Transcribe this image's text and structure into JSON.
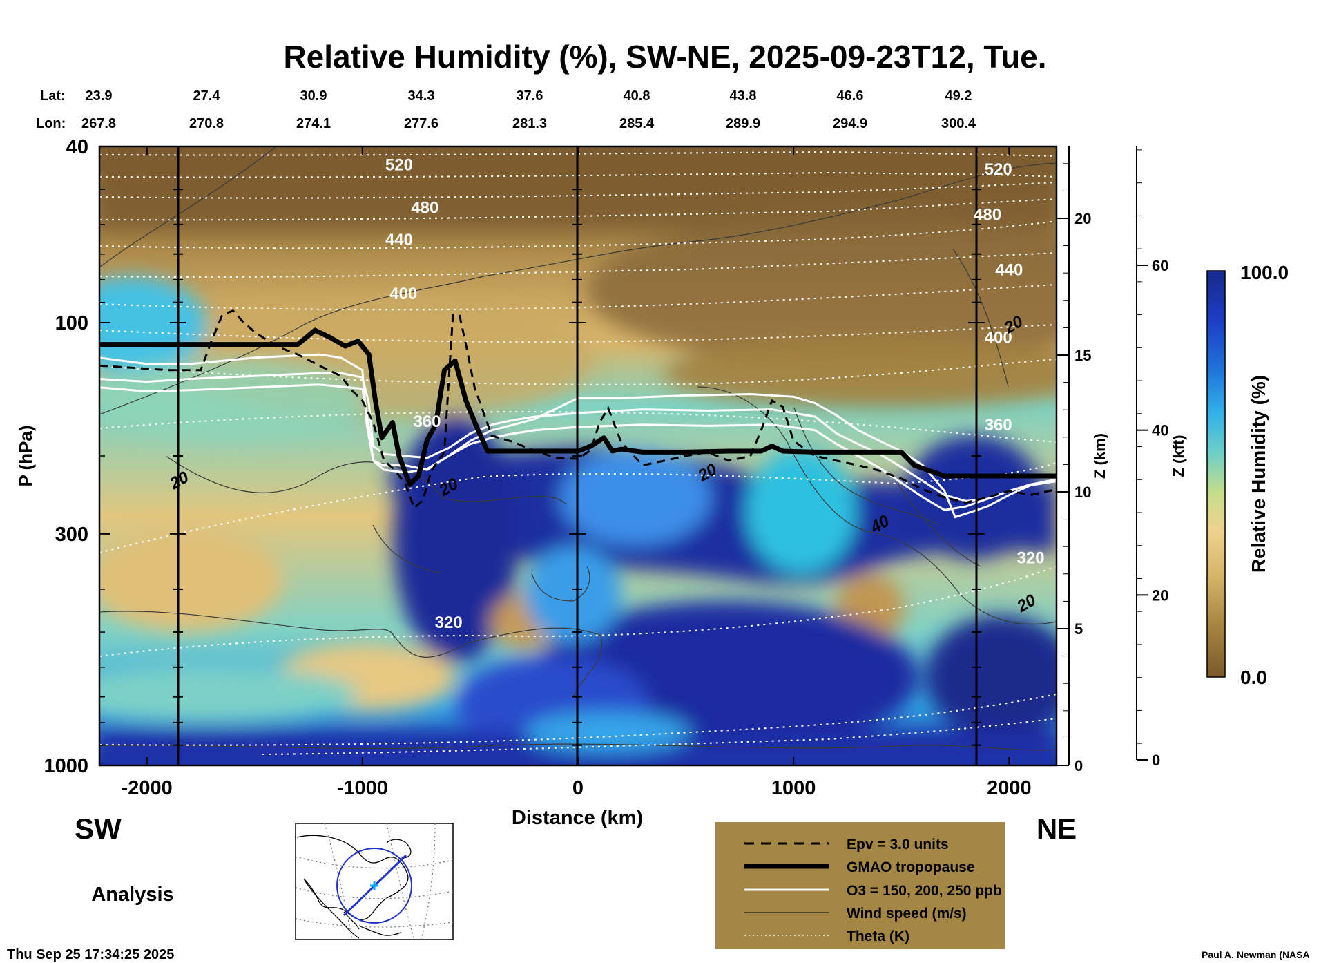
{
  "chart_data": {
    "type": "heatmap",
    "title": "Relative Humidity (%), SW-NE, 2025-09-23T12, Tue.",
    "xlabel": "Distance (km)",
    "ylabel": "P (hPa)",
    "y2label": "Z (km)",
    "y3label": "Z (kft)",
    "colorbar_label": "Relative Humidity (%)",
    "colorbar_max": "100.0",
    "colorbar_min": "0.0",
    "xlim": [
      -2220,
      2220
    ],
    "ylim": [
      1000,
      40
    ],
    "x_ticks": [
      -2000,
      -1000,
      0,
      1000,
      2000
    ],
    "y_ticks": [
      40,
      100,
      300,
      1000
    ],
    "zkm_ticks": [
      0,
      5,
      10,
      15,
      20
    ],
    "zkft_ticks": [
      0,
      20,
      40,
      60
    ],
    "lat_label": "Lat:",
    "lon_label": "Lon:",
    "lat_values": [
      "23.9",
      "27.4",
      "30.9",
      "34.3",
      "37.6",
      "40.8",
      "43.8",
      "46.6",
      "49.2"
    ],
    "lon_values": [
      "267.8",
      "270.8",
      "274.1",
      "277.6",
      "281.3",
      "285.4",
      "289.9",
      "294.9",
      "300.4"
    ],
    "left_region": "SW",
    "right_region": "NE",
    "theta_labels": [
      {
        "text": "520",
        "x": -830,
        "p": 44
      },
      {
        "text": "480",
        "x": -710,
        "p": 55
      },
      {
        "text": "440",
        "x": -830,
        "p": 65
      },
      {
        "text": "400",
        "x": -810,
        "p": 86
      },
      {
        "text": "360",
        "x": -700,
        "p": 167
      },
      {
        "text": "320",
        "x": -600,
        "p": 475
      },
      {
        "text": "520",
        "x": 1950,
        "p": 45
      },
      {
        "text": "480",
        "x": 1900,
        "p": 57
      },
      {
        "text": "440",
        "x": 2000,
        "p": 76
      },
      {
        "text": "400",
        "x": 1950,
        "p": 108
      },
      {
        "text": "360",
        "x": 1950,
        "p": 170
      },
      {
        "text": "320",
        "x": 2100,
        "p": 340
      }
    ],
    "wind_labels": [
      {
        "text": "20",
        "x": -1850,
        "p": 227
      },
      {
        "text": "20",
        "x": -600,
        "p": 235
      },
      {
        "text": "20",
        "x": 600,
        "p": 218
      },
      {
        "text": "40",
        "x": 1400,
        "p": 285
      },
      {
        "text": "20",
        "x": 2020,
        "p": 101
      },
      {
        "text": "20",
        "x": 2080,
        "p": 430
      }
    ],
    "series": [
      {
        "name": "GMAO tropopause",
        "x": [
          -2220,
          -1300,
          -1220,
          -1150,
          -1080,
          -1020,
          -970,
          -940,
          -910,
          -860,
          -830,
          -780,
          -740,
          -700,
          -660,
          -620,
          -570,
          -520,
          -470,
          -420,
          -300,
          -100,
          0,
          60,
          120,
          160,
          200,
          300,
          500,
          700,
          850,
          900,
          950,
          1100,
          1300,
          1500,
          1560,
          1700,
          1900,
          2100,
          2220
        ],
        "p": [
          112,
          112,
          104,
          108,
          113,
          110,
          118,
          150,
          182,
          168,
          200,
          232,
          222,
          184,
          170,
          128,
          122,
          150,
          172,
          195,
          195,
          195,
          195,
          190,
          182,
          195,
          193,
          196,
          196,
          195,
          195,
          190,
          195,
          196,
          196,
          196,
          210,
          222,
          222,
          222,
          222
        ]
      },
      {
        "name": "O3 = 150 ppb",
        "x": [
          -2220,
          -2000,
          -1800,
          -1500,
          -1200,
          -1100,
          -1000,
          -980,
          -950,
          -900,
          -800,
          -700,
          -600,
          -500,
          -400,
          -300,
          -200,
          0,
          200,
          500,
          800,
          1000,
          1100,
          1200,
          1300,
          1400,
          1500,
          1600,
          1700,
          1750,
          1800,
          1850,
          1900,
          2000,
          2100,
          2220
        ],
        "p": [
          120,
          124,
          124,
          120,
          118,
          120,
          128,
          170,
          205,
          210,
          210,
          215,
          200,
          185,
          175,
          170,
          165,
          148,
          148,
          146,
          145,
          147,
          152,
          162,
          175,
          185,
          195,
          210,
          240,
          275,
          270,
          265,
          260,
          245,
          233,
          228
        ]
      },
      {
        "name": "O3 = 200 ppb",
        "x": [
          -2220,
          -2000,
          -1800,
          -1500,
          -1200,
          -1100,
          -1000,
          -970,
          -950,
          -900,
          -800,
          -700,
          -600,
          -500,
          -400,
          -300,
          -200,
          0,
          300,
          600,
          900,
          1100,
          1200,
          1300,
          1400,
          1500,
          1600,
          1700,
          1800,
          1900,
          2000,
          2100,
          2220
        ],
        "p": [
          134,
          136,
          134,
          132,
          130,
          130,
          133,
          152,
          190,
          198,
          200,
          202,
          192,
          178,
          170,
          166,
          163,
          160,
          157,
          158,
          157,
          163,
          178,
          188,
          198,
          212,
          228,
          245,
          253,
          250,
          240,
          232,
          228
        ]
      },
      {
        "name": "O3 = 250 ppb",
        "x": [
          -2220,
          -2000,
          -1800,
          -1500,
          -1200,
          -1000,
          -970,
          -950,
          -900,
          -800,
          -700,
          -600,
          -500,
          -400,
          -300,
          -200,
          0,
          300,
          600,
          900,
          1100,
          1200,
          1300,
          1400,
          1500,
          1600,
          1700,
          1800,
          1900,
          2000,
          2100,
          2220
        ],
        "p": [
          140,
          143,
          142,
          140,
          138,
          141,
          172,
          205,
          215,
          218,
          214,
          200,
          188,
          182,
          178,
          175,
          172,
          170,
          171,
          170,
          175,
          188,
          200,
          213,
          230,
          248,
          265,
          260,
          250,
          240,
          232,
          226
        ]
      },
      {
        "name": "Epv = 3.0 units",
        "x": [
          -2220,
          -1900,
          -1750,
          -1700,
          -1650,
          -1600,
          -1550,
          -1500,
          -1400,
          -1300,
          -1200,
          -1100,
          -1050,
          -1000,
          -950,
          -900,
          -850,
          -800,
          -760,
          -720,
          -680,
          -620,
          -600,
          -580,
          -550,
          -520,
          -480,
          -400,
          -300,
          -200,
          -100,
          0,
          60,
          100,
          140,
          200,
          300,
          400,
          500,
          600,
          700,
          800,
          850,
          900,
          950,
          1000,
          1100,
          1200,
          1300,
          1400,
          1500,
          1600,
          1700,
          1800,
          1900,
          2000,
          2100,
          2220
        ],
        "p": [
          125,
          128,
          128,
          110,
          96,
          94,
          100,
          105,
          113,
          118,
          125,
          132,
          142,
          150,
          168,
          205,
          215,
          232,
          262,
          252,
          216,
          196,
          136,
          96,
          96,
          112,
          140,
          180,
          186,
          195,
          202,
          203,
          194,
          168,
          156,
          186,
          210,
          205,
          200,
          196,
          205,
          200,
          175,
          150,
          155,
          185,
          200,
          205,
          210,
          216,
          225,
          238,
          248,
          255,
          248,
          240,
          245,
          238
        ]
      }
    ],
    "legend": {
      "placement": "bottom-center",
      "items": [
        "Epv = 3.0 units",
        "GMAO tropopause",
        "O3 = 150, 200, 250 ppb",
        "Wind speed (m/s)",
        "Theta (K)"
      ]
    }
  },
  "footer": {
    "mode": "Analysis",
    "timestamp": "Thu Sep 25 17:34:25 2025",
    "credit": "Paul A. Newman (NASA"
  },
  "colors": {
    "legend_bg": "#a58745",
    "dry_dark": "#856331",
    "dry_mid": "#c4a15e",
    "moist": "#3ebde2",
    "saturated": "#1d2f9a"
  },
  "map_inset": {
    "icon": "globe-map-icon"
  }
}
